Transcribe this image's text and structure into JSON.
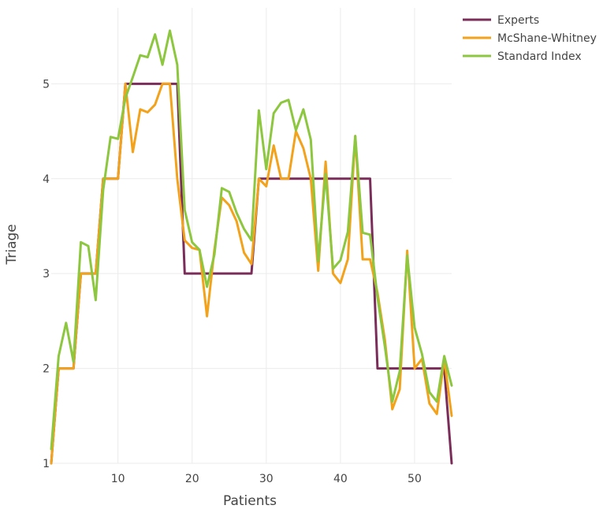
{
  "chart_data": {
    "type": "line",
    "xlabel": "Patients",
    "ylabel": "Triage",
    "xlim": [
      1,
      55
    ],
    "ylim": [
      1,
      5.8
    ],
    "x_ticks": [
      10,
      20,
      30,
      40,
      50
    ],
    "y_ticks": [
      1,
      2,
      3,
      4,
      5
    ],
    "grid": true,
    "legend_position": "top-right",
    "x": [
      1,
      2,
      3,
      4,
      5,
      6,
      7,
      8,
      9,
      10,
      11,
      12,
      13,
      14,
      15,
      16,
      17,
      18,
      19,
      20,
      21,
      22,
      23,
      24,
      25,
      26,
      27,
      28,
      29,
      30,
      31,
      32,
      33,
      34,
      35,
      36,
      37,
      38,
      39,
      40,
      41,
      42,
      43,
      44,
      45,
      46,
      47,
      48,
      49,
      50,
      51,
      52,
      53,
      54,
      55
    ],
    "series": [
      {
        "name": "Experts",
        "color": "#7b2d5a",
        "values": [
          1,
          2,
          2,
          2,
          3,
          3,
          3,
          4,
          4,
          4,
          5,
          5,
          5,
          5,
          5,
          5,
          5,
          5,
          3,
          3,
          3,
          3,
          3,
          3,
          3,
          3,
          3,
          3,
          4,
          4,
          4,
          4,
          4,
          4,
          4,
          4,
          4,
          4,
          4,
          4,
          4,
          4,
          4,
          4,
          2,
          2,
          2,
          2,
          2,
          2,
          2,
          2,
          2,
          2,
          1
        ]
      },
      {
        "name": "McShane-Whitney",
        "color": "#f2a21b",
        "values": [
          1,
          2,
          2,
          2,
          3,
          3,
          3,
          4,
          4,
          4,
          5,
          4.28,
          4.73,
          4.7,
          4.78,
          5,
          5,
          4,
          3.35,
          3.27,
          3.25,
          2.55,
          3.25,
          3.8,
          3.72,
          3.55,
          3.22,
          3.1,
          4,
          3.92,
          4.35,
          4,
          4,
          4.5,
          4.32,
          4,
          3.03,
          4.18,
          3,
          2.9,
          3.15,
          4.45,
          3.15,
          3.15,
          2.8,
          2.3,
          1.57,
          1.78,
          3.24,
          2,
          2.1,
          1.63,
          1.52,
          2.1,
          1.5
        ]
      },
      {
        "name": "Standard Index",
        "color": "#8dc63f",
        "values": [
          1.15,
          2.13,
          2.48,
          2.07,
          3.33,
          3.29,
          2.72,
          3.88,
          4.44,
          4.42,
          4.85,
          5.07,
          5.3,
          5.28,
          5.52,
          5.2,
          5.56,
          5.2,
          3.67,
          3.33,
          3.25,
          2.86,
          3.2,
          3.9,
          3.86,
          3.64,
          3.47,
          3.35,
          4.72,
          4.1,
          4.69,
          4.8,
          4.83,
          4.51,
          4.73,
          4.41,
          3.13,
          4.05,
          3.05,
          3.14,
          3.44,
          4.45,
          3.43,
          3.41,
          2.75,
          2.23,
          1.65,
          1.97,
          3.19,
          2.43,
          2.15,
          1.75,
          1.65,
          2.13,
          1.82
        ]
      }
    ]
  }
}
